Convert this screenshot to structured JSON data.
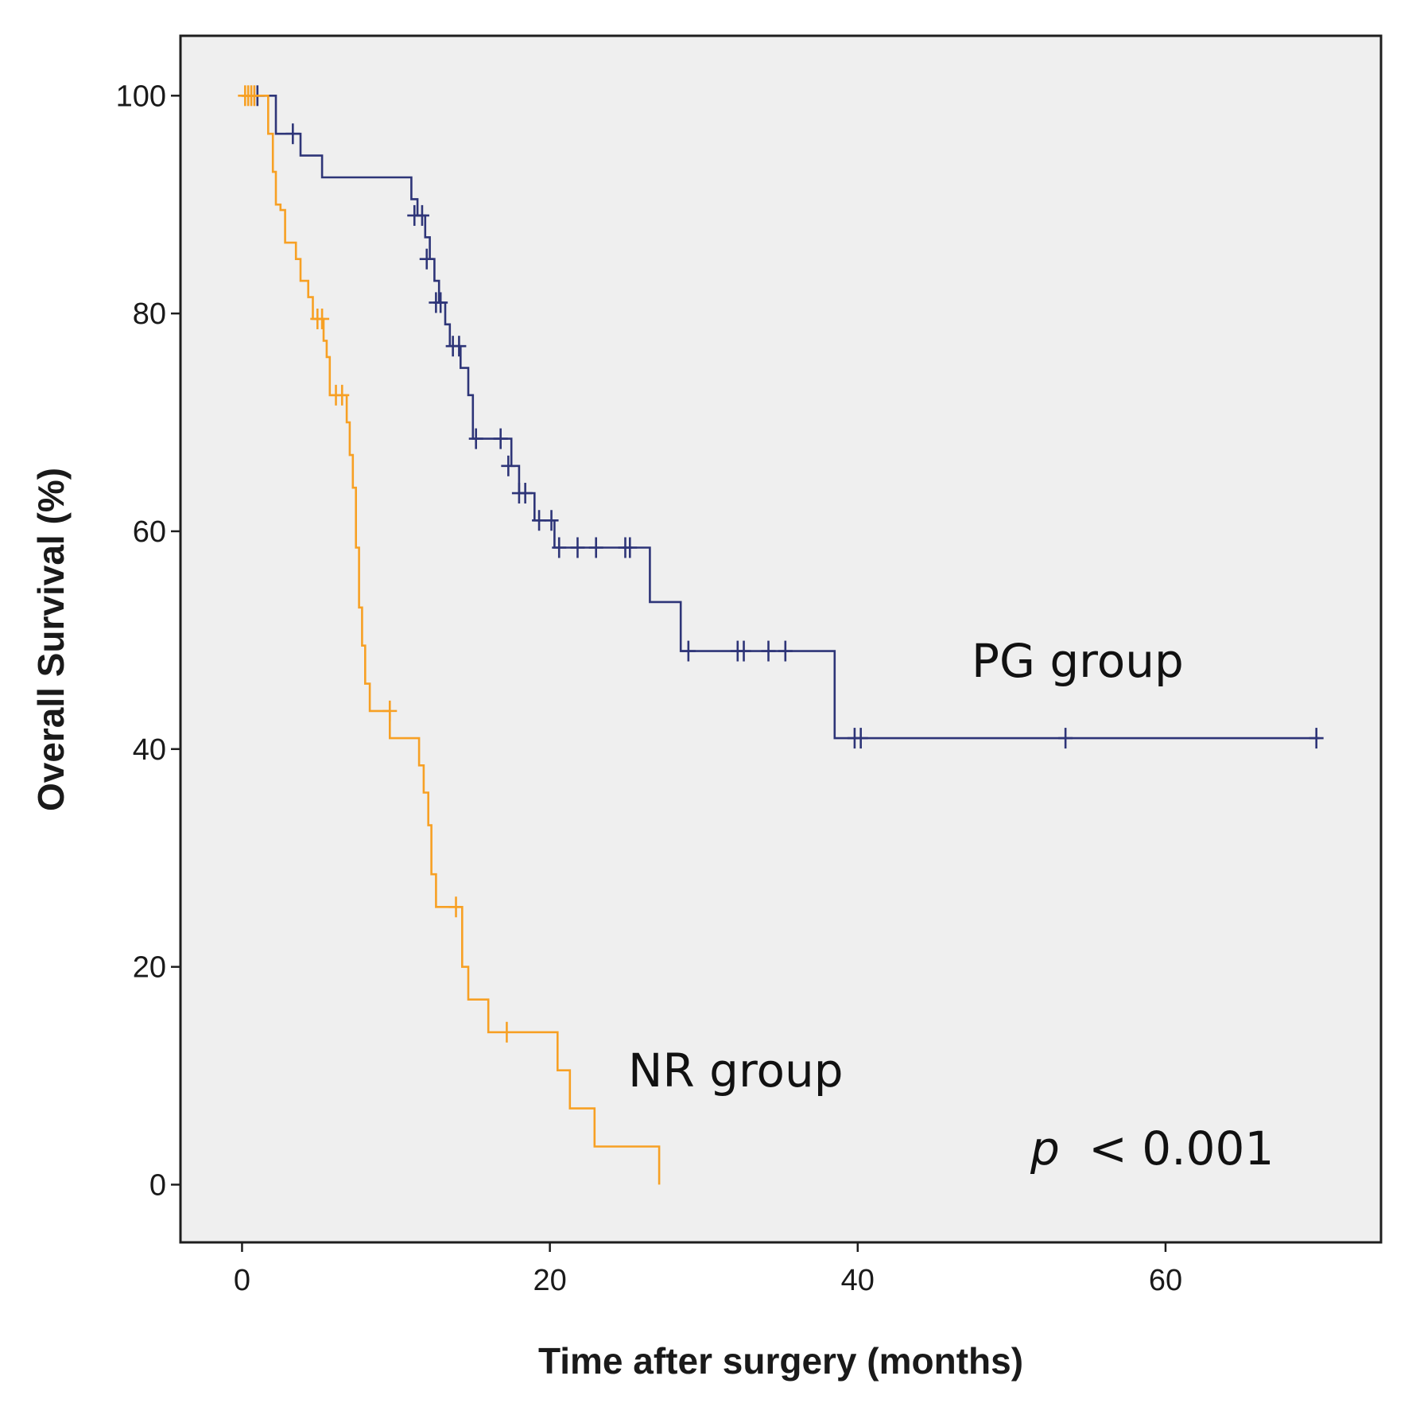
{
  "chart_data": {
    "type": "line",
    "subtype": "kaplan-meier",
    "xlabel": "Time after surgery (months)",
    "ylabel": "Overall Survival (%)",
    "xlim": [
      -4,
      74
    ],
    "ylim": [
      -5.3,
      105.5
    ],
    "xticks": [
      0,
      20,
      40,
      60
    ],
    "yticks": [
      0,
      20,
      40,
      60,
      80,
      100
    ],
    "grid": false,
    "background_color": "#efefef",
    "series": [
      {
        "name": "PG group",
        "color": "#2e3578",
        "steps": [
          [
            0,
            100
          ],
          [
            2.2,
            96.5
          ],
          [
            3.8,
            94.5
          ],
          [
            5.2,
            92.5
          ],
          [
            11,
            90.5
          ],
          [
            11.4,
            89
          ],
          [
            11.9,
            87
          ],
          [
            12.2,
            85
          ],
          [
            12.5,
            83
          ],
          [
            12.8,
            81
          ],
          [
            13.2,
            79
          ],
          [
            13.5,
            77
          ],
          [
            14.2,
            75
          ],
          [
            14.7,
            72.5
          ],
          [
            15,
            68.5
          ],
          [
            17.5,
            66
          ],
          [
            18,
            63.5
          ],
          [
            19,
            61
          ],
          [
            20.3,
            58.5
          ],
          [
            26.5,
            53.5
          ],
          [
            28.5,
            49
          ],
          [
            38.5,
            41
          ]
        ],
        "end_time": 70,
        "censored": [
          [
            1,
            100
          ],
          [
            3.3,
            96.5
          ],
          [
            11.2,
            89
          ],
          [
            11.7,
            89
          ],
          [
            12,
            85
          ],
          [
            12.6,
            81
          ],
          [
            12.9,
            81
          ],
          [
            13.7,
            77
          ],
          [
            14.1,
            77
          ],
          [
            15.2,
            68.5
          ],
          [
            16.8,
            68.5
          ],
          [
            17.3,
            66
          ],
          [
            18,
            63.5
          ],
          [
            18.4,
            63.5
          ],
          [
            19.3,
            61
          ],
          [
            20.1,
            61
          ],
          [
            20.6,
            58.5
          ],
          [
            21.8,
            58.5
          ],
          [
            23,
            58.5
          ],
          [
            24.9,
            58.5
          ],
          [
            25.2,
            58.5
          ],
          [
            29,
            49
          ],
          [
            32.2,
            49
          ],
          [
            32.6,
            49
          ],
          [
            34.2,
            49
          ],
          [
            35.3,
            49
          ],
          [
            39.8,
            41
          ],
          [
            40.2,
            41
          ],
          [
            53.5,
            41
          ],
          [
            69.8,
            41
          ]
        ]
      },
      {
        "name": "NR group",
        "color": "#f7a024",
        "steps": [
          [
            0,
            100
          ],
          [
            1.7,
            96.5
          ],
          [
            2,
            93
          ],
          [
            2.2,
            90
          ],
          [
            2.5,
            89.5
          ],
          [
            2.8,
            86.5
          ],
          [
            3.5,
            85
          ],
          [
            3.8,
            83
          ],
          [
            4.3,
            81.5
          ],
          [
            4.6,
            79.5
          ],
          [
            5.3,
            77.5
          ],
          [
            5.5,
            76
          ],
          [
            5.7,
            72.5
          ],
          [
            6.8,
            70
          ],
          [
            7,
            67
          ],
          [
            7.2,
            64
          ],
          [
            7.4,
            58.5
          ],
          [
            7.6,
            53
          ],
          [
            7.8,
            49.5
          ],
          [
            8,
            46
          ],
          [
            8.3,
            43.5
          ],
          [
            9.6,
            41
          ],
          [
            11.5,
            38.5
          ],
          [
            11.8,
            36
          ],
          [
            12.1,
            33
          ],
          [
            12.3,
            28.5
          ],
          [
            12.6,
            25.5
          ],
          [
            14.3,
            20
          ],
          [
            14.7,
            17
          ],
          [
            16,
            14
          ],
          [
            20.5,
            10.5
          ],
          [
            21.3,
            7
          ],
          [
            22.9,
            3.5
          ],
          [
            27.1,
            0
          ]
        ],
        "end_time": 27.1,
        "censored": [
          [
            0.2,
            100
          ],
          [
            0.4,
            100
          ],
          [
            0.6,
            100
          ],
          [
            0.8,
            100
          ],
          [
            4.9,
            79.5
          ],
          [
            5.2,
            79.5
          ],
          [
            6.1,
            72.5
          ],
          [
            6.5,
            72.5
          ],
          [
            9.6,
            43.5
          ],
          [
            13.9,
            25.5
          ],
          [
            17.2,
            14
          ]
        ]
      }
    ],
    "annotations": {
      "pg_label": "PG group",
      "nr_label": "NR group",
      "p_symbol": "p",
      "p_value": "< 0.001"
    }
  }
}
